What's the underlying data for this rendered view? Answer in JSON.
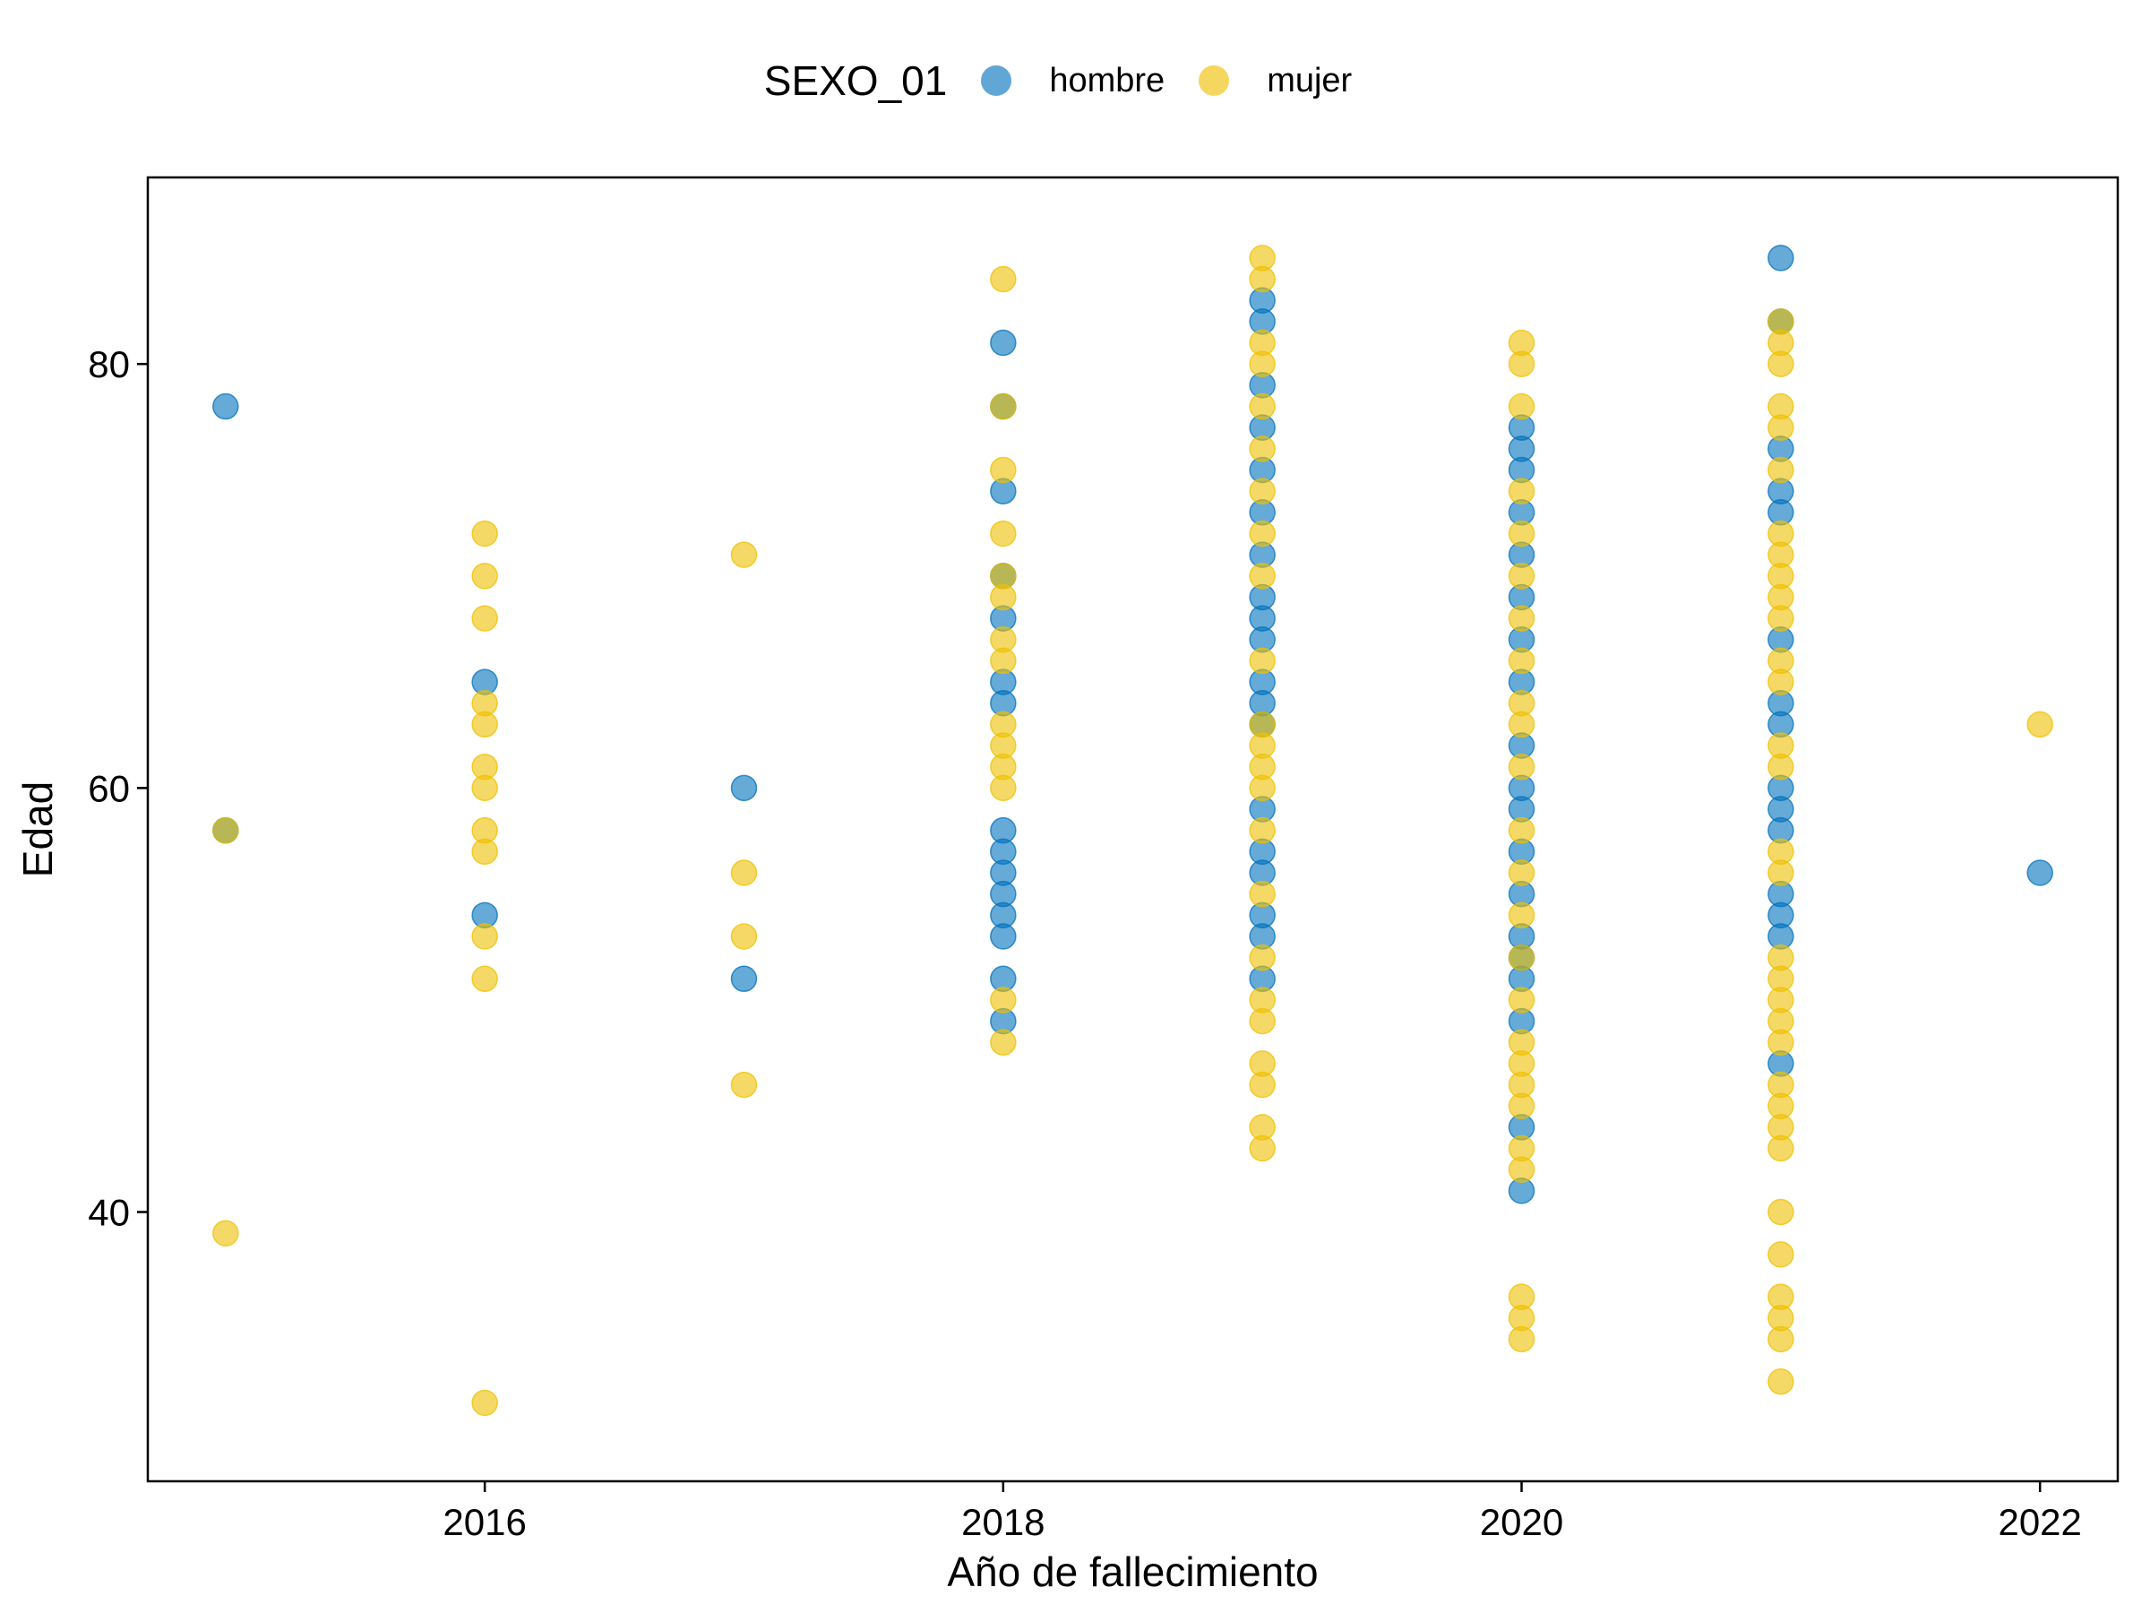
{
  "chart_data": {
    "type": "scatter",
    "xlabel": "Año de fallecimiento",
    "ylabel": "Edad",
    "xlim": [
      2014.7,
      2022.3
    ],
    "ylim": [
      27.3,
      88.8
    ],
    "xticks": [
      2016,
      2018,
      2020,
      2022
    ],
    "yticks": [
      40,
      60,
      80
    ],
    "grid": false,
    "legend": {
      "title": "SEXO_01",
      "position": "top"
    },
    "series": [
      {
        "name": "hombre",
        "color": "#0072BD",
        "points": [
          {
            "x": 2015,
            "y": 78
          },
          {
            "x": 2015,
            "y": 58
          },
          {
            "x": 2016,
            "y": 65
          },
          {
            "x": 2016,
            "y": 54
          },
          {
            "x": 2017,
            "y": 60
          },
          {
            "x": 2017,
            "y": 51
          },
          {
            "x": 2018,
            "y": 81
          },
          {
            "x": 2018,
            "y": 78
          },
          {
            "x": 2018,
            "y": 74
          },
          {
            "x": 2018,
            "y": 70
          },
          {
            "x": 2018,
            "y": 68
          },
          {
            "x": 2018,
            "y": 65
          },
          {
            "x": 2018,
            "y": 64
          },
          {
            "x": 2018,
            "y": 58
          },
          {
            "x": 2018,
            "y": 57
          },
          {
            "x": 2018,
            "y": 56
          },
          {
            "x": 2018,
            "y": 55
          },
          {
            "x": 2018,
            "y": 54
          },
          {
            "x": 2018,
            "y": 53
          },
          {
            "x": 2018,
            "y": 51
          },
          {
            "x": 2018,
            "y": 49
          },
          {
            "x": 2019,
            "y": 83
          },
          {
            "x": 2019,
            "y": 82
          },
          {
            "x": 2019,
            "y": 79
          },
          {
            "x": 2019,
            "y": 77
          },
          {
            "x": 2019,
            "y": 75
          },
          {
            "x": 2019,
            "y": 73
          },
          {
            "x": 2019,
            "y": 71
          },
          {
            "x": 2019,
            "y": 69
          },
          {
            "x": 2019,
            "y": 68
          },
          {
            "x": 2019,
            "y": 67
          },
          {
            "x": 2019,
            "y": 65
          },
          {
            "x": 2019,
            "y": 64
          },
          {
            "x": 2019,
            "y": 63
          },
          {
            "x": 2019,
            "y": 59
          },
          {
            "x": 2019,
            "y": 57
          },
          {
            "x": 2019,
            "y": 56
          },
          {
            "x": 2019,
            "y": 54
          },
          {
            "x": 2019,
            "y": 53
          },
          {
            "x": 2019,
            "y": 51
          },
          {
            "x": 2020,
            "y": 77
          },
          {
            "x": 2020,
            "y": 76
          },
          {
            "x": 2020,
            "y": 75
          },
          {
            "x": 2020,
            "y": 73
          },
          {
            "x": 2020,
            "y": 71
          },
          {
            "x": 2020,
            "y": 69
          },
          {
            "x": 2020,
            "y": 67
          },
          {
            "x": 2020,
            "y": 65
          },
          {
            "x": 2020,
            "y": 62
          },
          {
            "x": 2020,
            "y": 60
          },
          {
            "x": 2020,
            "y": 59
          },
          {
            "x": 2020,
            "y": 57
          },
          {
            "x": 2020,
            "y": 55
          },
          {
            "x": 2020,
            "y": 53
          },
          {
            "x": 2020,
            "y": 52
          },
          {
            "x": 2020,
            "y": 51
          },
          {
            "x": 2020,
            "y": 49
          },
          {
            "x": 2020,
            "y": 44
          },
          {
            "x": 2020,
            "y": 41
          },
          {
            "x": 2021,
            "y": 85
          },
          {
            "x": 2021,
            "y": 82
          },
          {
            "x": 2021,
            "y": 76
          },
          {
            "x": 2021,
            "y": 74
          },
          {
            "x": 2021,
            "y": 73
          },
          {
            "x": 2021,
            "y": 67
          },
          {
            "x": 2021,
            "y": 64
          },
          {
            "x": 2021,
            "y": 63
          },
          {
            "x": 2021,
            "y": 60
          },
          {
            "x": 2021,
            "y": 59
          },
          {
            "x": 2021,
            "y": 58
          },
          {
            "x": 2021,
            "y": 55
          },
          {
            "x": 2021,
            "y": 54
          },
          {
            "x": 2021,
            "y": 53
          },
          {
            "x": 2021,
            "y": 47
          },
          {
            "x": 2022,
            "y": 56
          }
        ]
      },
      {
        "name": "mujer",
        "color": "#EFC000",
        "points": [
          {
            "x": 2015,
            "y": 58
          },
          {
            "x": 2015,
            "y": 39
          },
          {
            "x": 2016,
            "y": 72
          },
          {
            "x": 2016,
            "y": 70
          },
          {
            "x": 2016,
            "y": 68
          },
          {
            "x": 2016,
            "y": 64
          },
          {
            "x": 2016,
            "y": 63
          },
          {
            "x": 2016,
            "y": 61
          },
          {
            "x": 2016,
            "y": 60
          },
          {
            "x": 2016,
            "y": 58
          },
          {
            "x": 2016,
            "y": 57
          },
          {
            "x": 2016,
            "y": 53
          },
          {
            "x": 2016,
            "y": 51
          },
          {
            "x": 2016,
            "y": 31
          },
          {
            "x": 2017,
            "y": 71
          },
          {
            "x": 2017,
            "y": 56
          },
          {
            "x": 2017,
            "y": 53
          },
          {
            "x": 2017,
            "y": 46
          },
          {
            "x": 2018,
            "y": 84
          },
          {
            "x": 2018,
            "y": 78
          },
          {
            "x": 2018,
            "y": 75
          },
          {
            "x": 2018,
            "y": 72
          },
          {
            "x": 2018,
            "y": 70
          },
          {
            "x": 2018,
            "y": 69
          },
          {
            "x": 2018,
            "y": 67
          },
          {
            "x": 2018,
            "y": 66
          },
          {
            "x": 2018,
            "y": 63
          },
          {
            "x": 2018,
            "y": 62
          },
          {
            "x": 2018,
            "y": 61
          },
          {
            "x": 2018,
            "y": 60
          },
          {
            "x": 2018,
            "y": 50
          },
          {
            "x": 2018,
            "y": 48
          },
          {
            "x": 2019,
            "y": 85
          },
          {
            "x": 2019,
            "y": 84
          },
          {
            "x": 2019,
            "y": 81
          },
          {
            "x": 2019,
            "y": 80
          },
          {
            "x": 2019,
            "y": 78
          },
          {
            "x": 2019,
            "y": 76
          },
          {
            "x": 2019,
            "y": 74
          },
          {
            "x": 2019,
            "y": 72
          },
          {
            "x": 2019,
            "y": 70
          },
          {
            "x": 2019,
            "y": 66
          },
          {
            "x": 2019,
            "y": 63
          },
          {
            "x": 2019,
            "y": 62
          },
          {
            "x": 2019,
            "y": 61
          },
          {
            "x": 2019,
            "y": 60
          },
          {
            "x": 2019,
            "y": 58
          },
          {
            "x": 2019,
            "y": 55
          },
          {
            "x": 2019,
            "y": 52
          },
          {
            "x": 2019,
            "y": 50
          },
          {
            "x": 2019,
            "y": 49
          },
          {
            "x": 2019,
            "y": 47
          },
          {
            "x": 2019,
            "y": 46
          },
          {
            "x": 2019,
            "y": 44
          },
          {
            "x": 2019,
            "y": 43
          },
          {
            "x": 2020,
            "y": 81
          },
          {
            "x": 2020,
            "y": 80
          },
          {
            "x": 2020,
            "y": 78
          },
          {
            "x": 2020,
            "y": 74
          },
          {
            "x": 2020,
            "y": 72
          },
          {
            "x": 2020,
            "y": 70
          },
          {
            "x": 2020,
            "y": 68
          },
          {
            "x": 2020,
            "y": 66
          },
          {
            "x": 2020,
            "y": 64
          },
          {
            "x": 2020,
            "y": 63
          },
          {
            "x": 2020,
            "y": 61
          },
          {
            "x": 2020,
            "y": 58
          },
          {
            "x": 2020,
            "y": 56
          },
          {
            "x": 2020,
            "y": 54
          },
          {
            "x": 2020,
            "y": 52
          },
          {
            "x": 2020,
            "y": 50
          },
          {
            "x": 2020,
            "y": 48
          },
          {
            "x": 2020,
            "y": 47
          },
          {
            "x": 2020,
            "y": 46
          },
          {
            "x": 2020,
            "y": 45
          },
          {
            "x": 2020,
            "y": 43
          },
          {
            "x": 2020,
            "y": 42
          },
          {
            "x": 2020,
            "y": 36
          },
          {
            "x": 2020,
            "y": 35
          },
          {
            "x": 2020,
            "y": 34
          },
          {
            "x": 2021,
            "y": 82
          },
          {
            "x": 2021,
            "y": 81
          },
          {
            "x": 2021,
            "y": 80
          },
          {
            "x": 2021,
            "y": 78
          },
          {
            "x": 2021,
            "y": 77
          },
          {
            "x": 2021,
            "y": 75
          },
          {
            "x": 2021,
            "y": 72
          },
          {
            "x": 2021,
            "y": 71
          },
          {
            "x": 2021,
            "y": 70
          },
          {
            "x": 2021,
            "y": 69
          },
          {
            "x": 2021,
            "y": 68
          },
          {
            "x": 2021,
            "y": 66
          },
          {
            "x": 2021,
            "y": 65
          },
          {
            "x": 2021,
            "y": 62
          },
          {
            "x": 2021,
            "y": 61
          },
          {
            "x": 2021,
            "y": 57
          },
          {
            "x": 2021,
            "y": 56
          },
          {
            "x": 2021,
            "y": 52
          },
          {
            "x": 2021,
            "y": 51
          },
          {
            "x": 2021,
            "y": 50
          },
          {
            "x": 2021,
            "y": 49
          },
          {
            "x": 2021,
            "y": 48
          },
          {
            "x": 2021,
            "y": 46
          },
          {
            "x": 2021,
            "y": 45
          },
          {
            "x": 2021,
            "y": 44
          },
          {
            "x": 2021,
            "y": 43
          },
          {
            "x": 2021,
            "y": 40
          },
          {
            "x": 2021,
            "y": 38
          },
          {
            "x": 2021,
            "y": 36
          },
          {
            "x": 2021,
            "y": 35
          },
          {
            "x": 2021,
            "y": 34
          },
          {
            "x": 2021,
            "y": 32
          },
          {
            "x": 2022,
            "y": 63
          }
        ]
      }
    ]
  }
}
